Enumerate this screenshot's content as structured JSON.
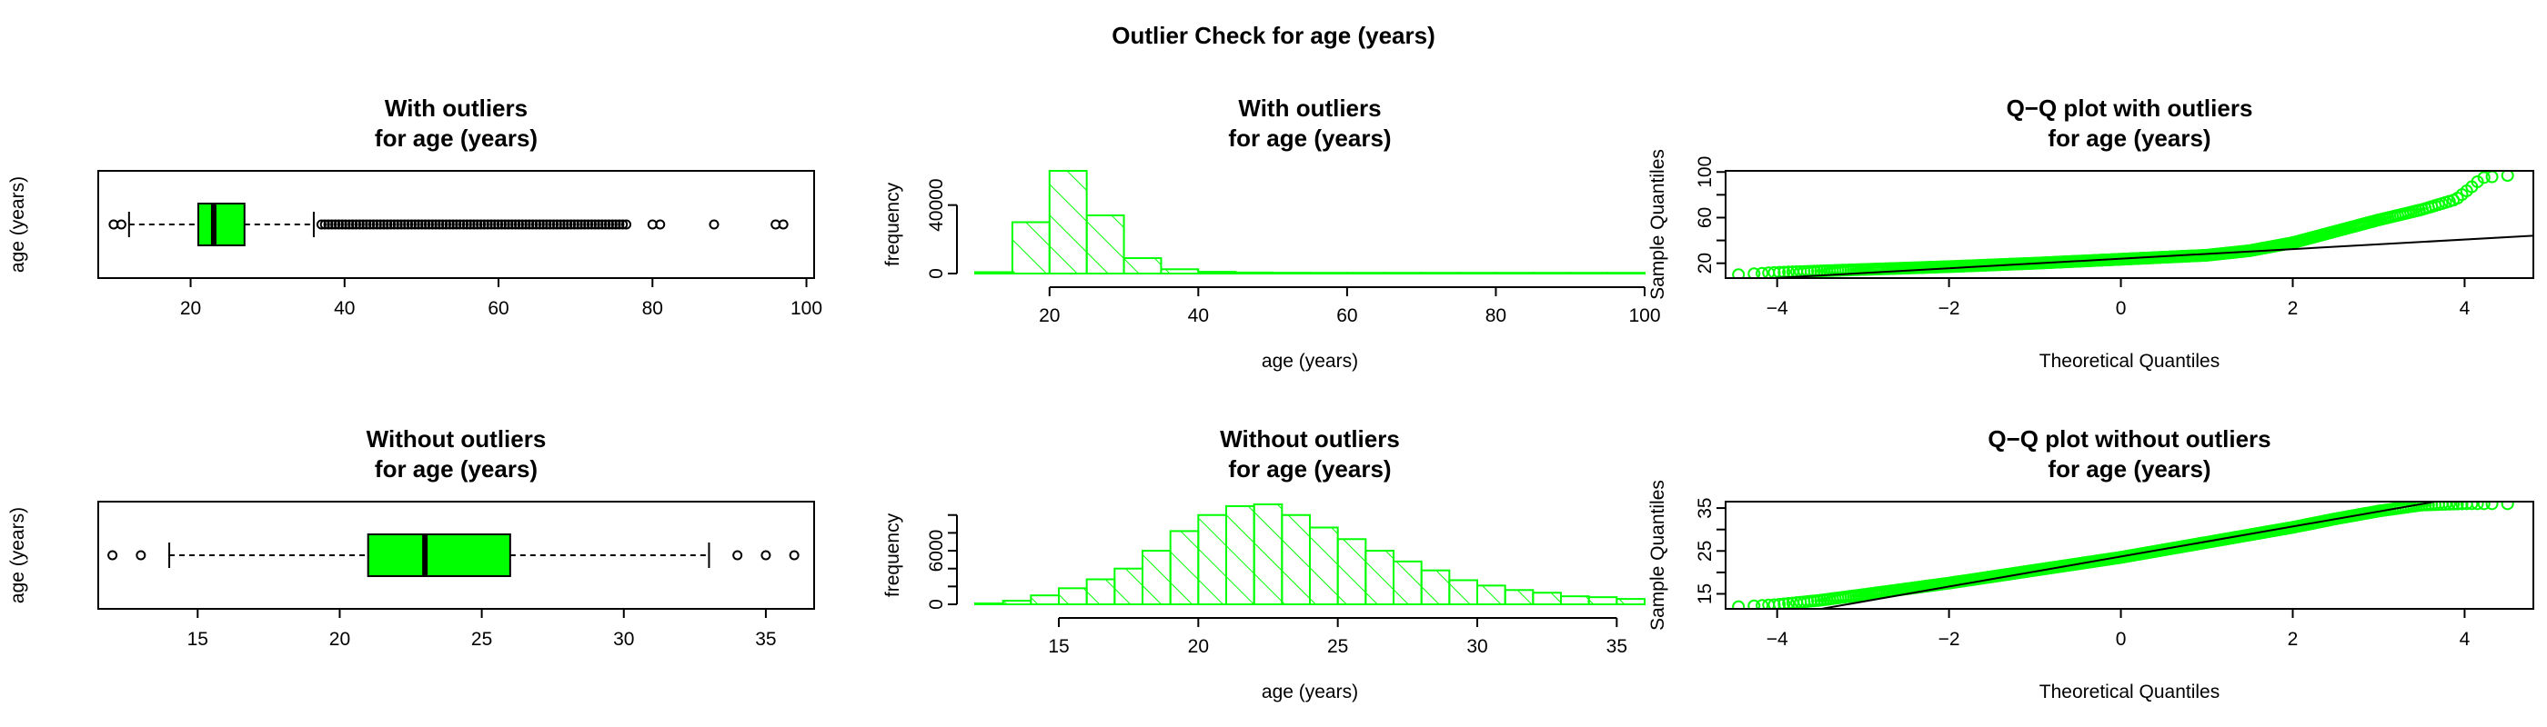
{
  "main_title": "Outlier Check for  age (years)",
  "colors": {
    "fill": "#00ff00",
    "stroke": "#000000",
    "hist": "#00ff00"
  },
  "chart_data": [
    {
      "id": "box_with",
      "type": "box",
      "title": [
        "With outliers",
        "for age (years)"
      ],
      "ylabel": "age (years)",
      "xlim": [
        8,
        101
      ],
      "ticks": [
        20,
        40,
        60,
        80,
        100
      ],
      "whisker_low": 12,
      "q1": 21,
      "median": 23,
      "q3": 27,
      "whisker_high": 36,
      "outliers": [
        10,
        11,
        80,
        81,
        88,
        96,
        97
      ],
      "outlier_run": [
        37,
        77
      ]
    },
    {
      "id": "hist_with",
      "type": "bar",
      "title": [
        "With outliers",
        "for age (years)"
      ],
      "xlabel": "age (years)",
      "ylabel": "frequency",
      "xlim": [
        10,
        100
      ],
      "ylim": [
        0,
        60000
      ],
      "xticks": [
        20,
        40,
        60,
        80,
        100
      ],
      "yticks": [
        0,
        40000
      ],
      "ytick_labels": [
        "0",
        "40000"
      ],
      "bin_start": 10,
      "bin_width": 5,
      "values": [
        800,
        30000,
        60000,
        34000,
        9000,
        2500,
        1000,
        600,
        450,
        350,
        300,
        250,
        200,
        150,
        120,
        100,
        80,
        60
      ]
    },
    {
      "id": "qq_with",
      "type": "scatter",
      "title": [
        "Q−Q plot with outliers",
        "for age (years)"
      ],
      "xlabel": "Theoretical Quantiles",
      "ylabel": "Sample Quantiles",
      "xlim": [
        -4.6,
        4.8
      ],
      "ylim": [
        7,
        101
      ],
      "xticks": [
        -4,
        -2,
        0,
        2,
        4
      ],
      "xtick_labels": [
        "−4",
        "−2",
        "0",
        "2",
        "4"
      ],
      "yticks": [
        20,
        60,
        100
      ],
      "yticks_extra": [
        40,
        80
      ],
      "line": {
        "intercept": 24,
        "slope": 4.2
      },
      "curve": [
        [
          -4.45,
          10
        ],
        [
          -4,
          12
        ],
        [
          -3,
          14.5
        ],
        [
          -2,
          17
        ],
        [
          -1,
          20
        ],
        [
          0,
          23.5
        ],
        [
          1,
          27
        ],
        [
          1.5,
          31
        ],
        [
          2,
          38
        ],
        [
          2.5,
          48
        ],
        [
          3,
          58
        ],
        [
          3.5,
          67
        ],
        [
          3.9,
          76
        ],
        [
          4.1,
          88
        ],
        [
          4.2,
          95
        ],
        [
          4.5,
          97
        ]
      ]
    },
    {
      "id": "box_without",
      "type": "box",
      "title": [
        "Without outliers",
        "for age (years)"
      ],
      "ylabel": "age (years)",
      "xlim": [
        11.5,
        36.7
      ],
      "ticks": [
        15,
        20,
        25,
        30,
        35
      ],
      "whisker_low": 14,
      "q1": 21,
      "median": 23,
      "q3": 26,
      "whisker_high": 33,
      "outliers": [
        12,
        13,
        34,
        35,
        36
      ]
    },
    {
      "id": "hist_without",
      "type": "bar",
      "title": [
        "Without outliers",
        "for age (years)"
      ],
      "xlabel": "age (years)",
      "ylabel": "frequency",
      "xlim": [
        12,
        36
      ],
      "ylim": [
        0,
        11500
      ],
      "xticks": [
        15,
        20,
        25,
        30,
        35
      ],
      "yticks": [
        0,
        6000
      ],
      "yticks_extra": [
        2000,
        4000,
        8000,
        10000
      ],
      "ytick_labels": [
        "0",
        "6000"
      ],
      "bin_start": 12,
      "bin_width": 1,
      "values": [
        100,
        400,
        1000,
        1800,
        2800,
        4000,
        6000,
        8200,
        10000,
        11000,
        11200,
        10000,
        8600,
        7300,
        6000,
        4800,
        3800,
        2700,
        2100,
        1600,
        1300,
        900,
        800,
        600
      ]
    },
    {
      "id": "qq_without",
      "type": "scatter",
      "title": [
        "Q−Q plot without outliers",
        "for age (years)"
      ],
      "xlabel": "Theoretical Quantiles",
      "ylabel": "Sample Quantiles",
      "xlim": [
        -4.6,
        4.8
      ],
      "ylim": [
        11.5,
        36.5
      ],
      "xticks": [
        -4,
        -2,
        0,
        2,
        4
      ],
      "xtick_labels": [
        "−4",
        "−2",
        "0",
        "2",
        "4"
      ],
      "yticks": [
        15,
        25,
        35
      ],
      "yticks_extra": [
        20,
        30
      ],
      "line": {
        "intercept": 23.7,
        "slope": 3.5
      },
      "curve": [
        [
          -4.45,
          12
        ],
        [
          -4,
          12.5
        ],
        [
          -3.5,
          13.5
        ],
        [
          -3,
          14.8
        ],
        [
          -2,
          17.5
        ],
        [
          -1,
          20.5
        ],
        [
          0,
          23.5
        ],
        [
          1,
          27
        ],
        [
          2,
          30.5
        ],
        [
          2.5,
          32.5
        ],
        [
          3,
          34.3
        ],
        [
          3.5,
          35.7
        ],
        [
          4,
          36
        ],
        [
          4.5,
          36
        ]
      ]
    }
  ]
}
